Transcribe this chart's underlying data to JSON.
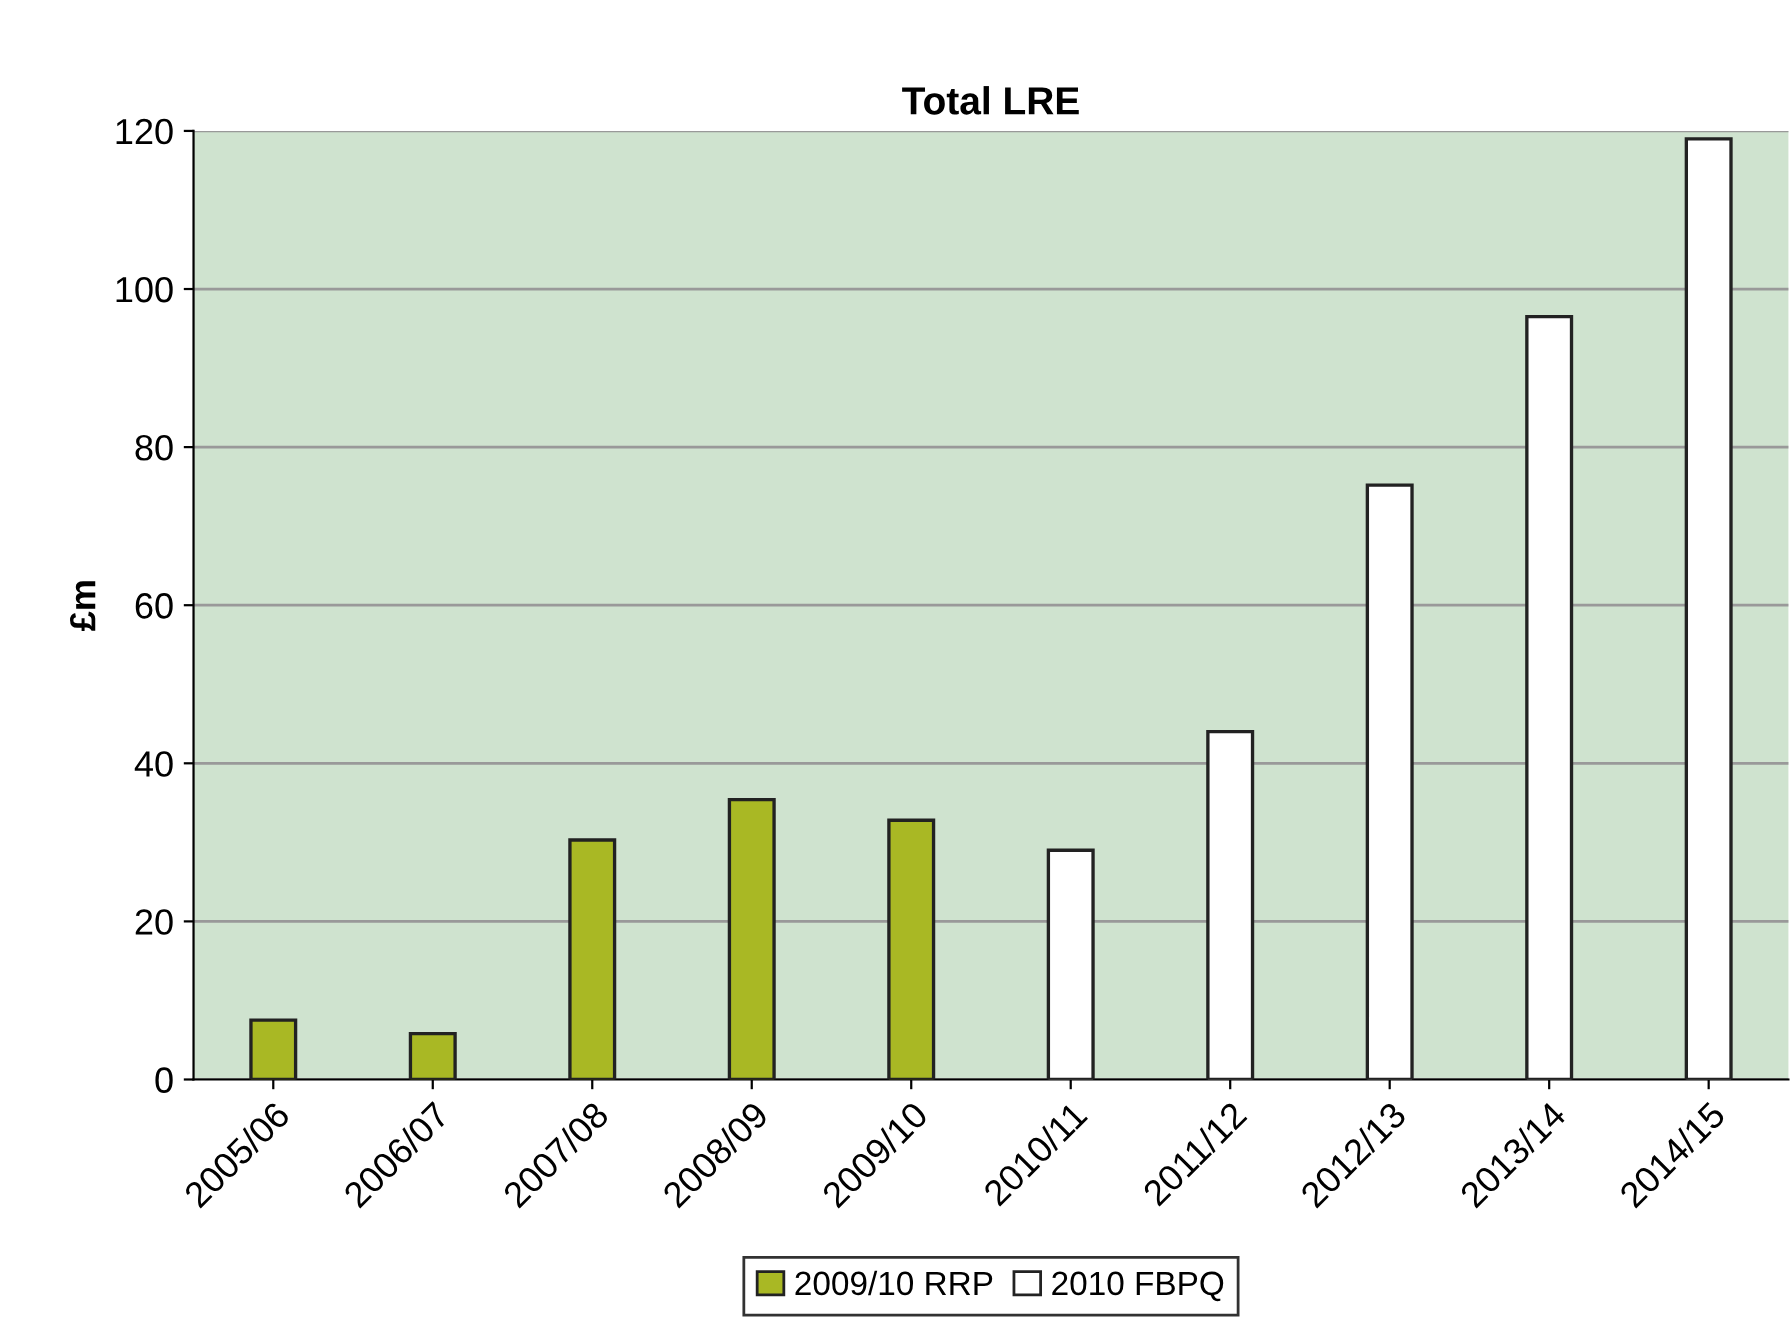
{
  "chart_data": {
    "type": "bar",
    "title": "Total LRE",
    "ylabel": "£m",
    "categories": [
      "2005/06",
      "2006/07",
      "2007/08",
      "2008/09",
      "2009/10",
      "2010/11",
      "2011/12",
      "2012/13",
      "2013/14",
      "2014/15"
    ],
    "series": [
      {
        "name": "2009/10 RRP",
        "color": "#a9b824",
        "values": [
          7.5,
          5.8,
          30.3,
          35.4,
          32.8,
          null,
          null,
          null,
          null,
          null
        ]
      },
      {
        "name": "2010 FBPQ",
        "color": "#ffffff",
        "values": [
          null,
          null,
          null,
          null,
          null,
          29,
          44,
          75.2,
          96.5,
          119
        ]
      }
    ],
    "ylim": [
      0,
      120
    ],
    "yticks": [
      0,
      20,
      40,
      60,
      80,
      100,
      120
    ],
    "grid": "y",
    "legend": "bottom"
  }
}
